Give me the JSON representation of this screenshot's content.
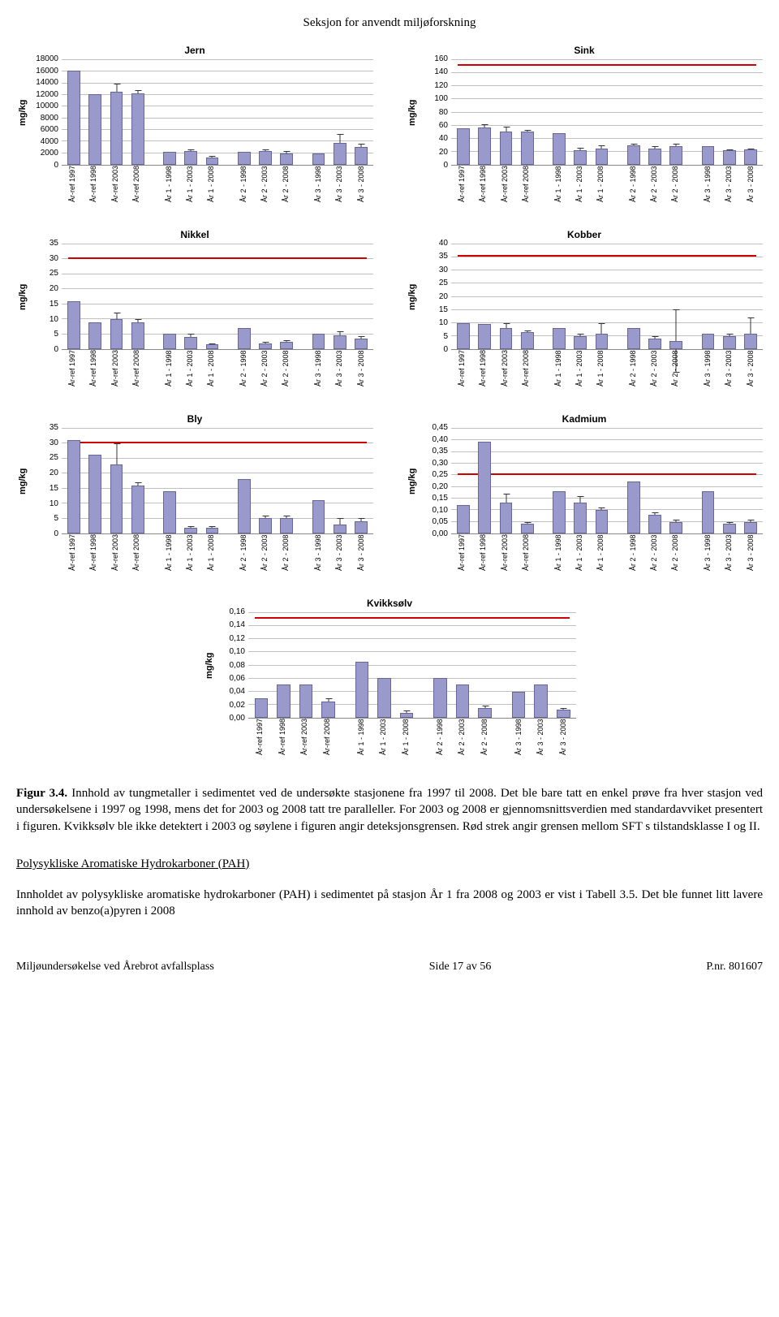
{
  "header": "Seksjon for anvendt miljøforskning",
  "common": {
    "ylabel": "mg/kg",
    "bar_fill": "#9999cc",
    "bar_stroke": "#666699",
    "grid_color": "#c0c0c0",
    "ref_color": "#d00000",
    "categories": [
      "År-ref 1997",
      "År-ref 1998",
      "År-ref 2003",
      "År-ref 2008",
      "",
      "År 1 - 1998",
      "År 1 - 2003",
      "År 1 - 2008",
      "",
      "År 2 - 1998",
      "År 2 - 2003",
      "År 2 - 2008",
      "",
      "År 3 - 1998",
      "År 3 - 2003",
      "År 3 - 2008"
    ]
  },
  "charts": {
    "jern": {
      "title": "Jern",
      "ymax": 18000,
      "ystep": 2000,
      "ref": null,
      "bars": [
        {
          "v": 16000
        },
        {
          "v": 12000
        },
        {
          "v": 12500,
          "err": 1400
        },
        {
          "v": 12200,
          "err": 600
        },
        null,
        {
          "v": 2200
        },
        {
          "v": 2400,
          "err": 300
        },
        {
          "v": 1200,
          "err": 300
        },
        null,
        {
          "v": 2200
        },
        {
          "v": 2400,
          "err": 300
        },
        {
          "v": 2000,
          "err": 300
        },
        null,
        {
          "v": 2000
        },
        {
          "v": 3800,
          "err": 1400
        },
        {
          "v": 3000,
          "err": 600
        }
      ]
    },
    "sink": {
      "title": "Sink",
      "ymax": 160,
      "ystep": 20,
      "ref": 150,
      "bars": [
        {
          "v": 55
        },
        {
          "v": 57,
          "err": 4
        },
        {
          "v": 50,
          "err": 8
        },
        {
          "v": 50,
          "err": 3
        },
        null,
        {
          "v": 48
        },
        {
          "v": 22,
          "err": 4
        },
        {
          "v": 25,
          "err": 5
        },
        null,
        {
          "v": 30,
          "err": 2
        },
        {
          "v": 25,
          "err": 3
        },
        {
          "v": 28,
          "err": 4
        },
        null,
        {
          "v": 28
        },
        {
          "v": 22,
          "err": 2
        },
        {
          "v": 23,
          "err": 2
        }
      ]
    },
    "nikkel": {
      "title": "Nikkel",
      "ymax": 35,
      "ystep": 5,
      "ref": 30,
      "bars": [
        {
          "v": 16
        },
        {
          "v": 9
        },
        {
          "v": 10,
          "err": 2
        },
        {
          "v": 9,
          "err": 1
        },
        null,
        {
          "v": 5
        },
        {
          "v": 4,
          "err": 1
        },
        {
          "v": 1.5,
          "err": 0.5
        },
        null,
        {
          "v": 7
        },
        {
          "v": 2,
          "err": 0.5
        },
        {
          "v": 2.5,
          "err": 0.5
        },
        null,
        {
          "v": 5
        },
        {
          "v": 4.5,
          "err": 1.5
        },
        {
          "v": 3.5,
          "err": 0.8
        }
      ]
    },
    "kobber": {
      "title": "Kobber",
      "ymax": 40,
      "ystep": 5,
      "ref": 35,
      "bars": [
        {
          "v": 10
        },
        {
          "v": 9.5
        },
        {
          "v": 8,
          "err": 2
        },
        {
          "v": 6.5,
          "err": 0.5
        },
        null,
        {
          "v": 8
        },
        {
          "v": 5,
          "err": 1
        },
        {
          "v": 6,
          "err": 4
        },
        null,
        {
          "v": 8
        },
        {
          "v": 4,
          "err": 1
        },
        {
          "v": 3,
          "err": 12
        },
        null,
        {
          "v": 6
        },
        {
          "v": 5,
          "err": 0.8
        },
        {
          "v": 6,
          "err": 6
        }
      ]
    },
    "bly": {
      "title": "Bly",
      "ymax": 35,
      "ystep": 5,
      "ref": 30,
      "bars": [
        {
          "v": 31
        },
        {
          "v": 26
        },
        {
          "v": 23,
          "err": 7
        },
        {
          "v": 16,
          "err": 1
        },
        null,
        {
          "v": 14
        },
        {
          "v": 2,
          "err": 0.5
        },
        {
          "v": 2,
          "err": 0.5
        },
        null,
        {
          "v": 18
        },
        {
          "v": 5,
          "err": 1
        },
        {
          "v": 5,
          "err": 1
        },
        null,
        {
          "v": 11
        },
        {
          "v": 3,
          "err": 2
        },
        {
          "v": 4,
          "err": 1
        }
      ]
    },
    "kadmium": {
      "title": "Kadmium",
      "ymax": 0.45,
      "ystep": 0.05,
      "ref": 0.25,
      "bars": [
        {
          "v": 0.12
        },
        {
          "v": 0.39
        },
        {
          "v": 0.13,
          "err": 0.04
        },
        {
          "v": 0.04,
          "err": 0.01
        },
        null,
        {
          "v": 0.18
        },
        {
          "v": 0.13,
          "err": 0.03
        },
        {
          "v": 0.1,
          "err": 0.01
        },
        null,
        {
          "v": 0.22
        },
        {
          "v": 0.08,
          "err": 0.01
        },
        {
          "v": 0.05,
          "err": 0.01
        },
        null,
        {
          "v": 0.18
        },
        {
          "v": 0.04,
          "err": 0.01
        },
        {
          "v": 0.05,
          "err": 0.01
        }
      ]
    },
    "kvikksolv": {
      "title": "Kvikksølv",
      "ymax": 0.16,
      "ystep": 0.02,
      "ref": 0.15,
      "bars": [
        {
          "v": 0.03
        },
        {
          "v": 0.05
        },
        {
          "v": 0.05
        },
        {
          "v": 0.025,
          "err": 0.004
        },
        null,
        {
          "v": 0.085
        },
        {
          "v": 0.06
        },
        {
          "v": 0.008,
          "err": 0.003
        },
        null,
        {
          "v": 0.06
        },
        {
          "v": 0.05
        },
        {
          "v": 0.015,
          "err": 0.003
        },
        null,
        {
          "v": 0.04
        },
        {
          "v": 0.05
        },
        {
          "v": 0.012,
          "err": 0.003
        }
      ]
    }
  },
  "caption": {
    "ref": "Figur 3.4.",
    "text": "Innhold av tungmetaller i sedimentet ved de undersøkte stasjonene fra 1997 til 2008. Det ble bare tatt en enkel prøve fra hver stasjon ved undersøkelsene i 1997 og 1998, mens det for 2003 og 2008 tatt tre paralleller. For 2003 og 2008 er gjennomsnittsverdien med standardavviket presentert i figuren. Kvikksølv ble ikke detektert i 2003 og søylene i figuren angir deteksjonsgrensen. Rød strek angir grensen mellom SFT s tilstandsklasse I og II."
  },
  "section": {
    "heading": "Polysykliske Aromatiske Hydrokarboner (PAH)",
    "para": "Innholdet av polysykliske aromatiske hydrokarboner (PAH) i sedimentet på stasjon År 1 fra 2008 og 2003 er vist i Tabell 3.5. Det ble funnet litt lavere innhold av benzo(a)pyren i 2008"
  },
  "footer": {
    "left": "Miljøundersøkelse ved Årebrot avfallsplass",
    "center": "Side 17 av 56",
    "right": "P.nr. 801607"
  }
}
